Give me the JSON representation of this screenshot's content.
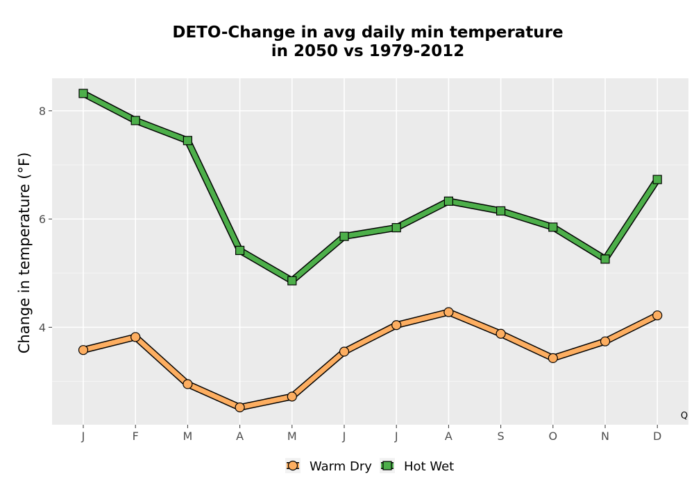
{
  "chart_data": {
    "type": "line",
    "title_line1": "DETO-Change in avg daily min temperature",
    "title_line2": "in 2050 vs 1979-2012",
    "xlabel": "",
    "ylabel": "Change in temperature (°F)",
    "categories": [
      "J",
      "F",
      "M",
      "A",
      "M",
      "J",
      "J",
      "A",
      "S",
      "O",
      "N",
      "D"
    ],
    "yticks": [
      4,
      6,
      8
    ],
    "ylim": [
      2.2,
      8.6
    ],
    "grid": true,
    "legend_position": "bottom",
    "corner_note": "Q",
    "series": [
      {
        "name": "Warm Dry",
        "marker": "circle",
        "color": "#fdae61",
        "values": [
          3.58,
          3.82,
          2.95,
          2.52,
          2.72,
          3.55,
          4.04,
          4.28,
          3.88,
          3.43,
          3.74,
          4.22
        ]
      },
      {
        "name": "Hot Wet",
        "marker": "square",
        "color": "#4daf4a",
        "values": [
          8.32,
          7.82,
          7.45,
          5.42,
          4.86,
          5.68,
          5.84,
          6.33,
          6.15,
          5.85,
          5.26,
          6.73
        ]
      }
    ]
  }
}
